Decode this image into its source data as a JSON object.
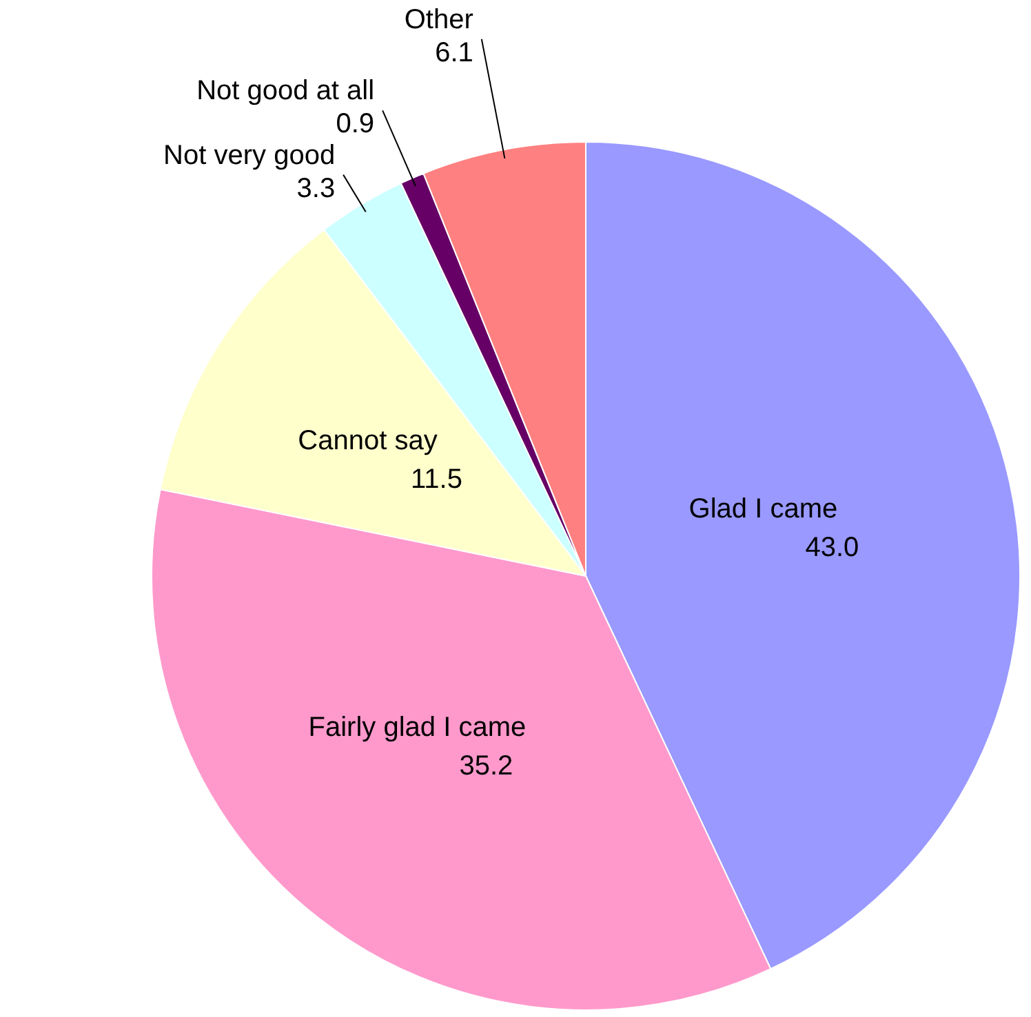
{
  "chart_data": {
    "type": "pie",
    "categories": [
      "Glad I came",
      "Fairly glad I came",
      "Cannot say",
      "Not very good",
      "Not good at all",
      "Other"
    ],
    "values": [
      43.0,
      35.2,
      11.5,
      3.3,
      0.9,
      6.1
    ],
    "value_labels": [
      "43.0",
      "35.2",
      "11.5",
      "3.3",
      "0.9",
      "6.1"
    ],
    "colors": [
      "#9999ff",
      "#ff99cc",
      "#ffffcc",
      "#ccffff",
      "#660066",
      "#ff8080"
    ]
  }
}
